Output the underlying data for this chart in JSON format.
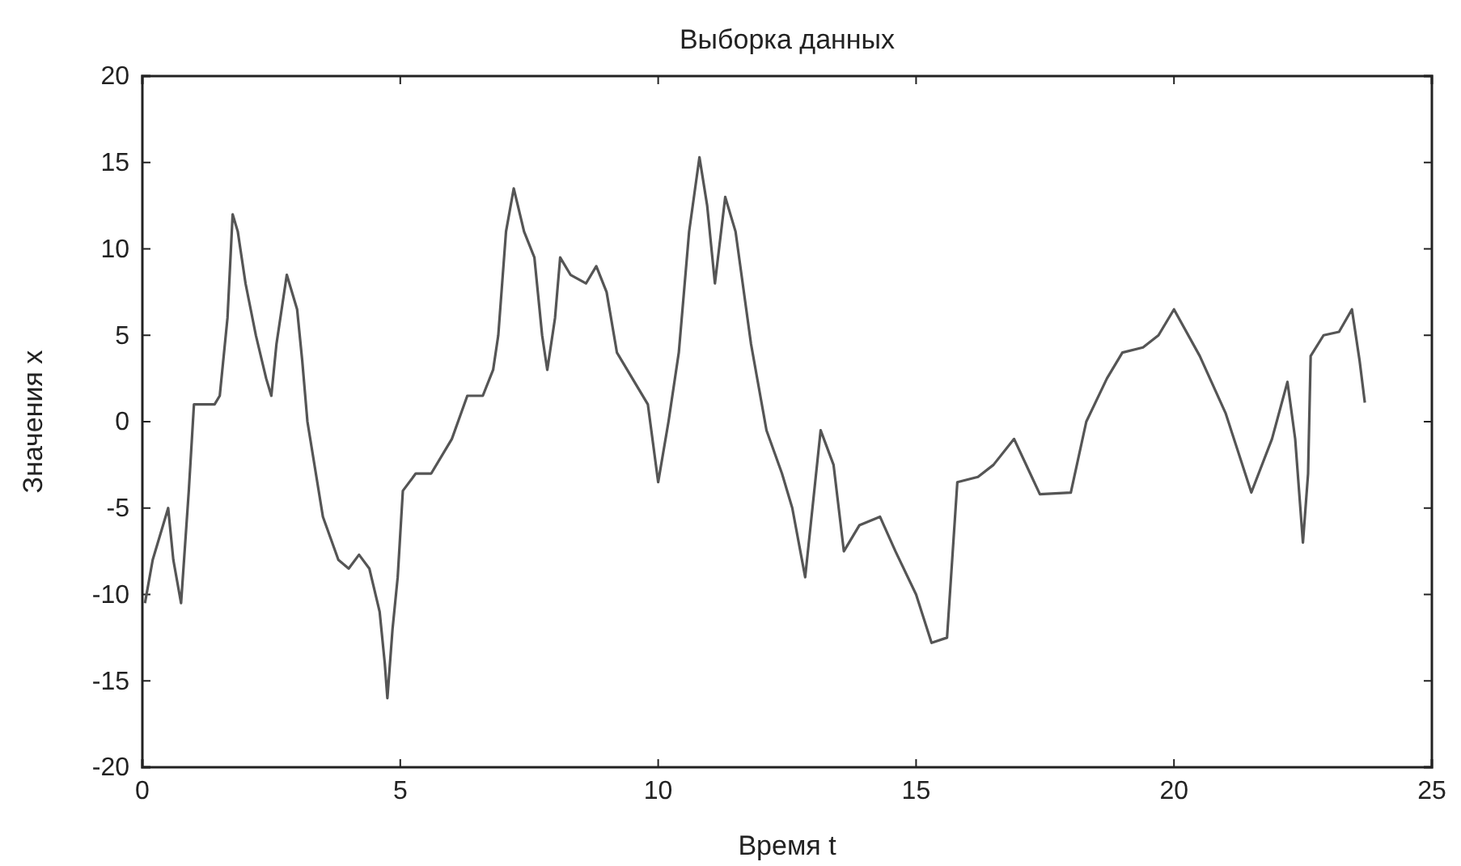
{
  "chart_data": {
    "type": "line",
    "title": "Выборка данных",
    "xlabel": "Время t",
    "ylabel": "Значения x",
    "xlim": [
      0,
      25
    ],
    "xticks": [
      0,
      5,
      10,
      15,
      20,
      25
    ],
    "ylim": [
      -20,
      20
    ],
    "yticks": [
      -20,
      -15,
      -10,
      -5,
      0,
      5,
      10,
      15,
      20
    ],
    "grid": false,
    "marker": "none",
    "line_style": "solid",
    "series": [
      {
        "color": "#555555",
        "x": [
          0.05,
          0.2,
          0.5,
          0.6,
          0.75,
          0.9,
          1.0,
          1.4,
          1.5,
          1.65,
          1.75,
          1.85,
          2.0,
          2.2,
          2.4,
          2.5,
          2.6,
          2.8,
          3.0,
          3.1,
          3.2,
          3.5,
          3.8,
          4.0,
          4.2,
          4.4,
          4.6,
          4.7,
          4.75,
          4.85,
          4.95,
          5.05,
          5.3,
          5.6,
          6.0,
          6.3,
          6.6,
          6.8,
          6.9,
          7.05,
          7.2,
          7.4,
          7.6,
          7.75,
          7.85,
          8.0,
          8.1,
          8.3,
          8.6,
          8.8,
          9.0,
          9.2,
          9.5,
          9.8,
          10.0,
          10.2,
          10.4,
          10.6,
          10.8,
          10.95,
          11.1,
          11.3,
          11.5,
          11.8,
          12.1,
          12.4,
          12.6,
          12.85,
          13.15,
          13.4,
          13.6,
          13.9,
          14.3,
          14.6,
          15.0,
          15.3,
          15.6,
          15.8,
          16.2,
          16.5,
          16.9,
          17.4,
          18.0,
          18.3,
          18.7,
          19.0,
          19.4,
          19.7,
          20.0,
          20.5,
          21.0,
          21.5,
          21.9,
          22.2,
          22.35,
          22.45,
          22.5,
          22.6,
          22.65,
          22.9,
          23.2,
          23.45,
          23.6,
          23.7
        ],
        "values": [
          -10.5,
          -8,
          -5,
          -8,
          -10.5,
          -4,
          1,
          1,
          1.5,
          6,
          12,
          11,
          8,
          5,
          2.5,
          1.5,
          4.5,
          8.5,
          6.5,
          3.5,
          0,
          -5.5,
          -8,
          -8.5,
          -7.7,
          -8.5,
          -11,
          -14,
          -16,
          -12,
          -9,
          -4,
          -3,
          -3,
          -1,
          1.5,
          1.5,
          3,
          5,
          11,
          13.5,
          11,
          9.5,
          5,
          3,
          6,
          9.5,
          8.5,
          8,
          9,
          7.5,
          4,
          2.5,
          1,
          -3.5,
          0,
          4,
          11,
          15.3,
          12.5,
          8,
          13,
          11,
          4.5,
          -0.5,
          -3,
          -5,
          -9,
          -0.5,
          -2.5,
          -7.5,
          -6,
          -5.5,
          -7.5,
          -10,
          -12.8,
          -12.5,
          -3.5,
          -3.2,
          -2.5,
          -1,
          -4.2,
          -4.1,
          0,
          2.5,
          4,
          4.3,
          5,
          6.5,
          3.8,
          0.5,
          -4.1,
          -1,
          2.3,
          -1,
          -5,
          -7,
          -3,
          3.8,
          5,
          5.2,
          6.5,
          3.5,
          1.1
        ]
      }
    ]
  }
}
